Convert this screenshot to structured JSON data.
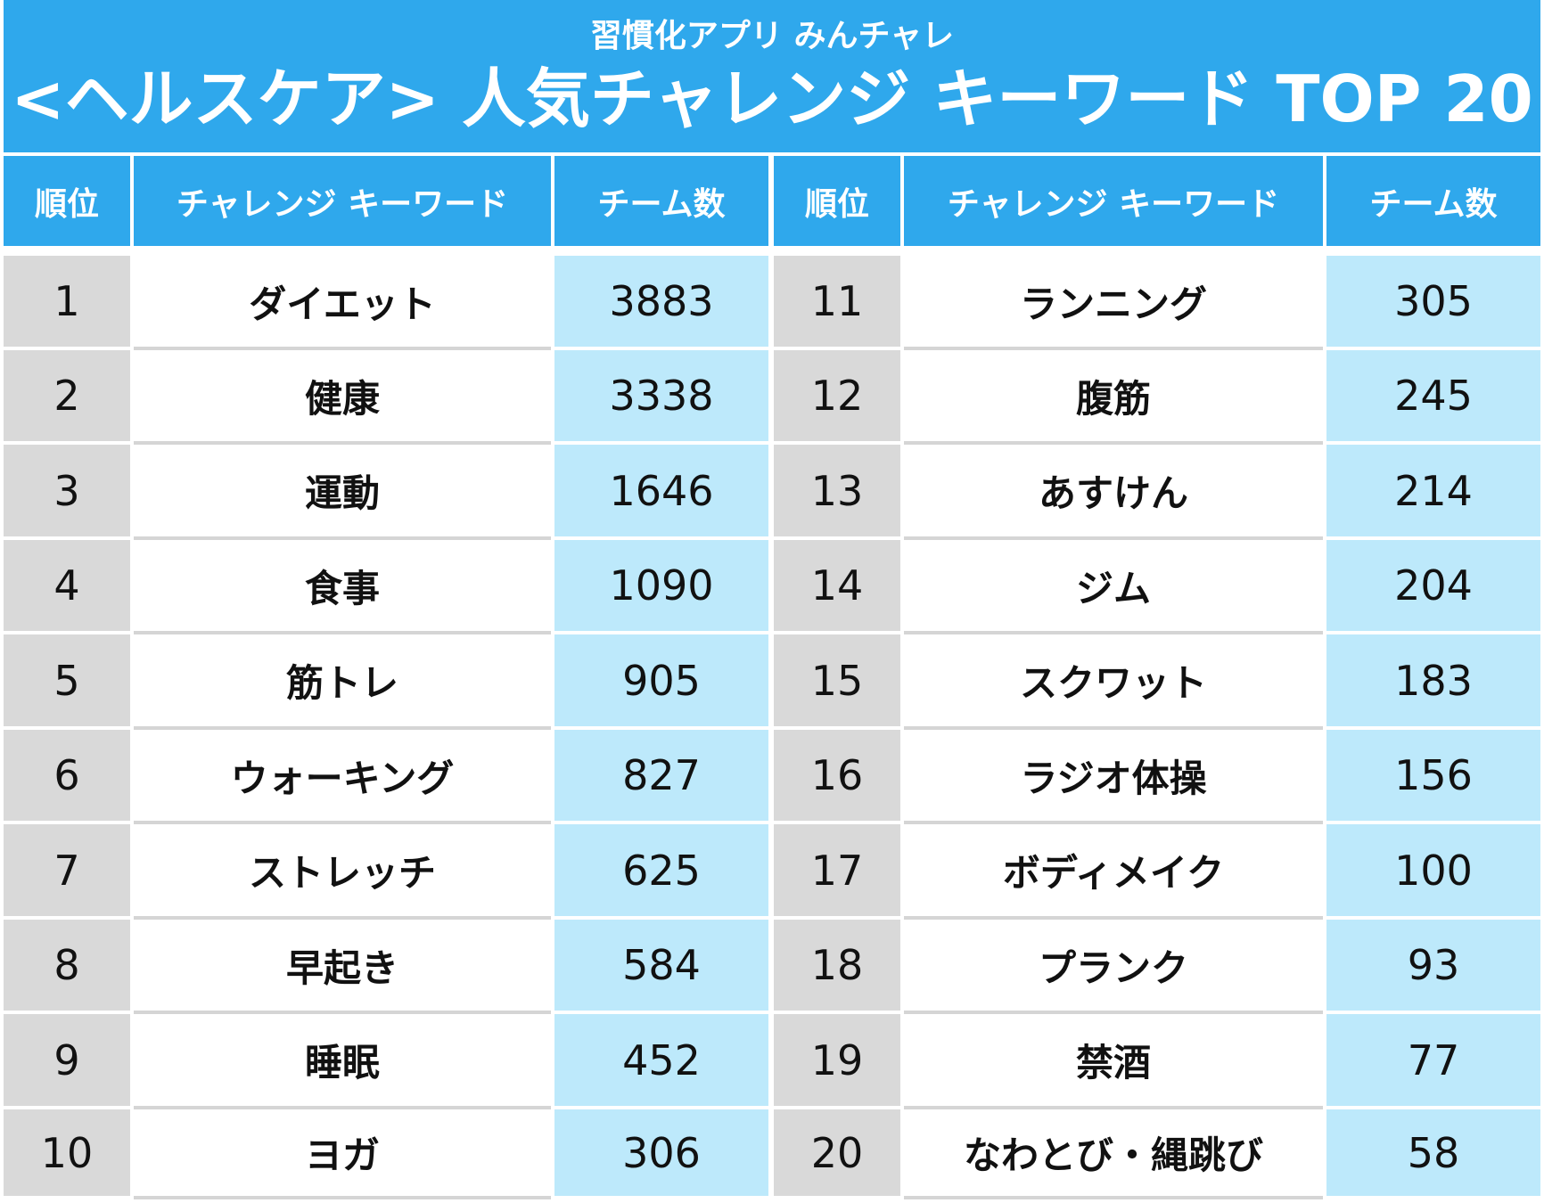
{
  "header": {
    "subtitle": "習慣化アプリ みんチャレ",
    "title": "<ヘルスケア> 人気チャレンジ キーワード TOP 20"
  },
  "columns": {
    "rank": "順位",
    "keyword": "チャレンジ キーワード",
    "teams": "チーム数"
  },
  "colors": {
    "header_bg": "#2fa8ec",
    "rank_bg": "#d9d9d9",
    "count_bg": "#bde9fb"
  },
  "rows_left": [
    {
      "rank": "1",
      "keyword": "ダイエット",
      "teams": "3883"
    },
    {
      "rank": "2",
      "keyword": "健康",
      "teams": "3338"
    },
    {
      "rank": "3",
      "keyword": "運動",
      "teams": "1646"
    },
    {
      "rank": "4",
      "keyword": "食事",
      "teams": "1090"
    },
    {
      "rank": "5",
      "keyword": "筋トレ",
      "teams": "905"
    },
    {
      "rank": "6",
      "keyword": "ウォーキング",
      "teams": "827"
    },
    {
      "rank": "7",
      "keyword": "ストレッチ",
      "teams": "625"
    },
    {
      "rank": "8",
      "keyword": "早起き",
      "teams": "584"
    },
    {
      "rank": "9",
      "keyword": "睡眠",
      "teams": "452"
    },
    {
      "rank": "10",
      "keyword": "ヨガ",
      "teams": "306"
    }
  ],
  "rows_right": [
    {
      "rank": "11",
      "keyword": "ランニング",
      "teams": "305"
    },
    {
      "rank": "12",
      "keyword": "腹筋",
      "teams": "245"
    },
    {
      "rank": "13",
      "keyword": "あすけん",
      "teams": "214"
    },
    {
      "rank": "14",
      "keyword": "ジム",
      "teams": "204"
    },
    {
      "rank": "15",
      "keyword": "スクワット",
      "teams": "183"
    },
    {
      "rank": "16",
      "keyword": "ラジオ体操",
      "teams": "156"
    },
    {
      "rank": "17",
      "keyword": "ボディメイク",
      "teams": "100"
    },
    {
      "rank": "18",
      "keyword": "プランク",
      "teams": "93"
    },
    {
      "rank": "19",
      "keyword": "禁酒",
      "teams": "77"
    },
    {
      "rank": "20",
      "keyword": "なわとび・縄跳び",
      "teams": "58"
    }
  ]
}
